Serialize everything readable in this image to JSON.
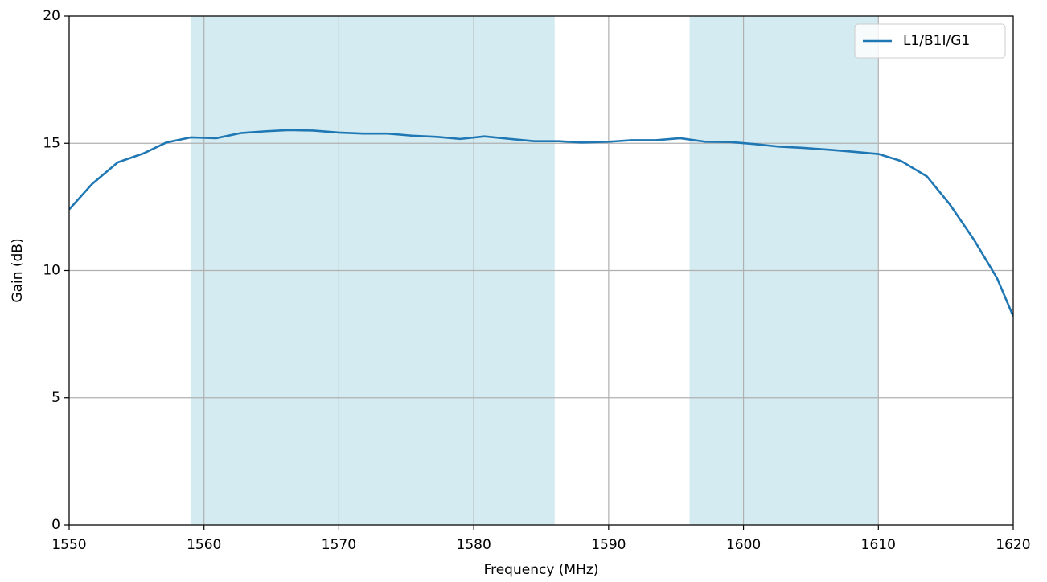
{
  "chart_data": {
    "type": "line",
    "xlabel": "Frequency (MHz)",
    "ylabel": "Gain (dB)",
    "x": [
      1550,
      1551.7,
      1553.6,
      1555.5,
      1557.2,
      1559.0,
      1560.9,
      1562.7,
      1564.5,
      1566.3,
      1568.1,
      1570.0,
      1571.8,
      1573.6,
      1575.4,
      1577.3,
      1579.0,
      1580.8,
      1582.7,
      1584.5,
      1586.3,
      1588.0,
      1590.0,
      1591.7,
      1593.5,
      1595.3,
      1597.2,
      1599.0,
      1600.8,
      1602.6,
      1604.4,
      1606.3,
      1608.1,
      1610.0,
      1611.7,
      1613.6,
      1615.3,
      1617.1,
      1618.8,
      1620
    ],
    "series": [
      {
        "name": "L1/B1I/G1",
        "color": "#1f77b4",
        "values": [
          12.4,
          13.4,
          14.25,
          14.6,
          15.03,
          15.23,
          15.2,
          15.4,
          15.47,
          15.52,
          15.5,
          15.42,
          15.38,
          15.38,
          15.3,
          15.25,
          15.17,
          15.27,
          15.17,
          15.08,
          15.08,
          15.03,
          15.06,
          15.12,
          15.12,
          15.2,
          15.06,
          15.05,
          14.97,
          14.87,
          14.82,
          14.75,
          14.67,
          14.58,
          14.3,
          13.7,
          12.6,
          11.2,
          9.7,
          8.2
        ]
      }
    ],
    "bands": [
      [
        1559,
        1586
      ],
      [
        1596,
        1610
      ]
    ],
    "band_color": "#d4ebf1",
    "xlim": [
      1550,
      1620
    ],
    "xticks": [
      1550,
      1560,
      1570,
      1580,
      1590,
      1600,
      1610,
      1620
    ],
    "ylim": [
      0,
      20
    ],
    "yticks": [
      0,
      5,
      10,
      15,
      20
    ],
    "grid": true,
    "legend": "upper right"
  }
}
